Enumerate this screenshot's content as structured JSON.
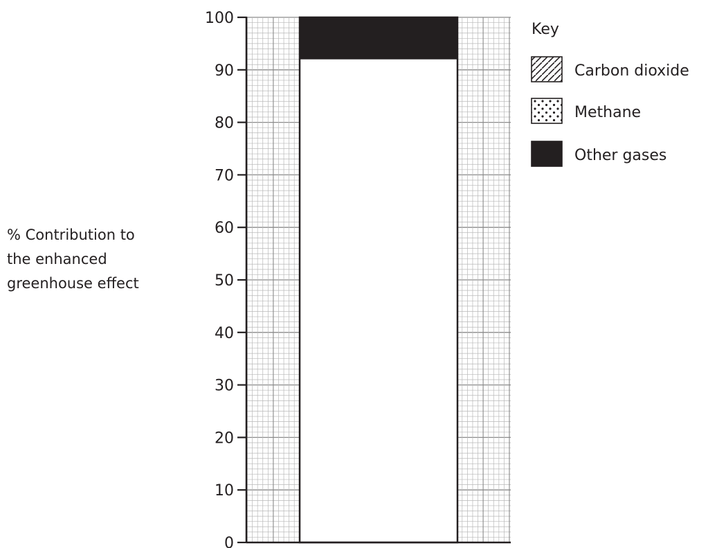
{
  "chart_data": {
    "type": "bar",
    "stacked": true,
    "ylabel_lines": [
      "% Contribution to",
      "the enhanced",
      "greenhouse effect"
    ],
    "ylim": [
      0,
      100
    ],
    "yticks": [
      0,
      10,
      20,
      30,
      40,
      50,
      60,
      70,
      80,
      90,
      100
    ],
    "grid": true,
    "legend": {
      "title": "Key",
      "position": "top-right",
      "items": [
        {
          "name": "Carbon dioxide",
          "pattern": "hatch"
        },
        {
          "name": "Methane",
          "pattern": "dots"
        },
        {
          "name": "Other gases",
          "pattern": "solid"
        }
      ]
    },
    "segments": [
      {
        "series": "Other gases",
        "from": 92,
        "to": 100,
        "color": "#231f20"
      }
    ],
    "unfilled_range": [
      0,
      92
    ]
  },
  "colors": {
    "ink": "#231f20",
    "grid_minor": "#b9b9b9",
    "grid_major": "#8a8a8a"
  }
}
